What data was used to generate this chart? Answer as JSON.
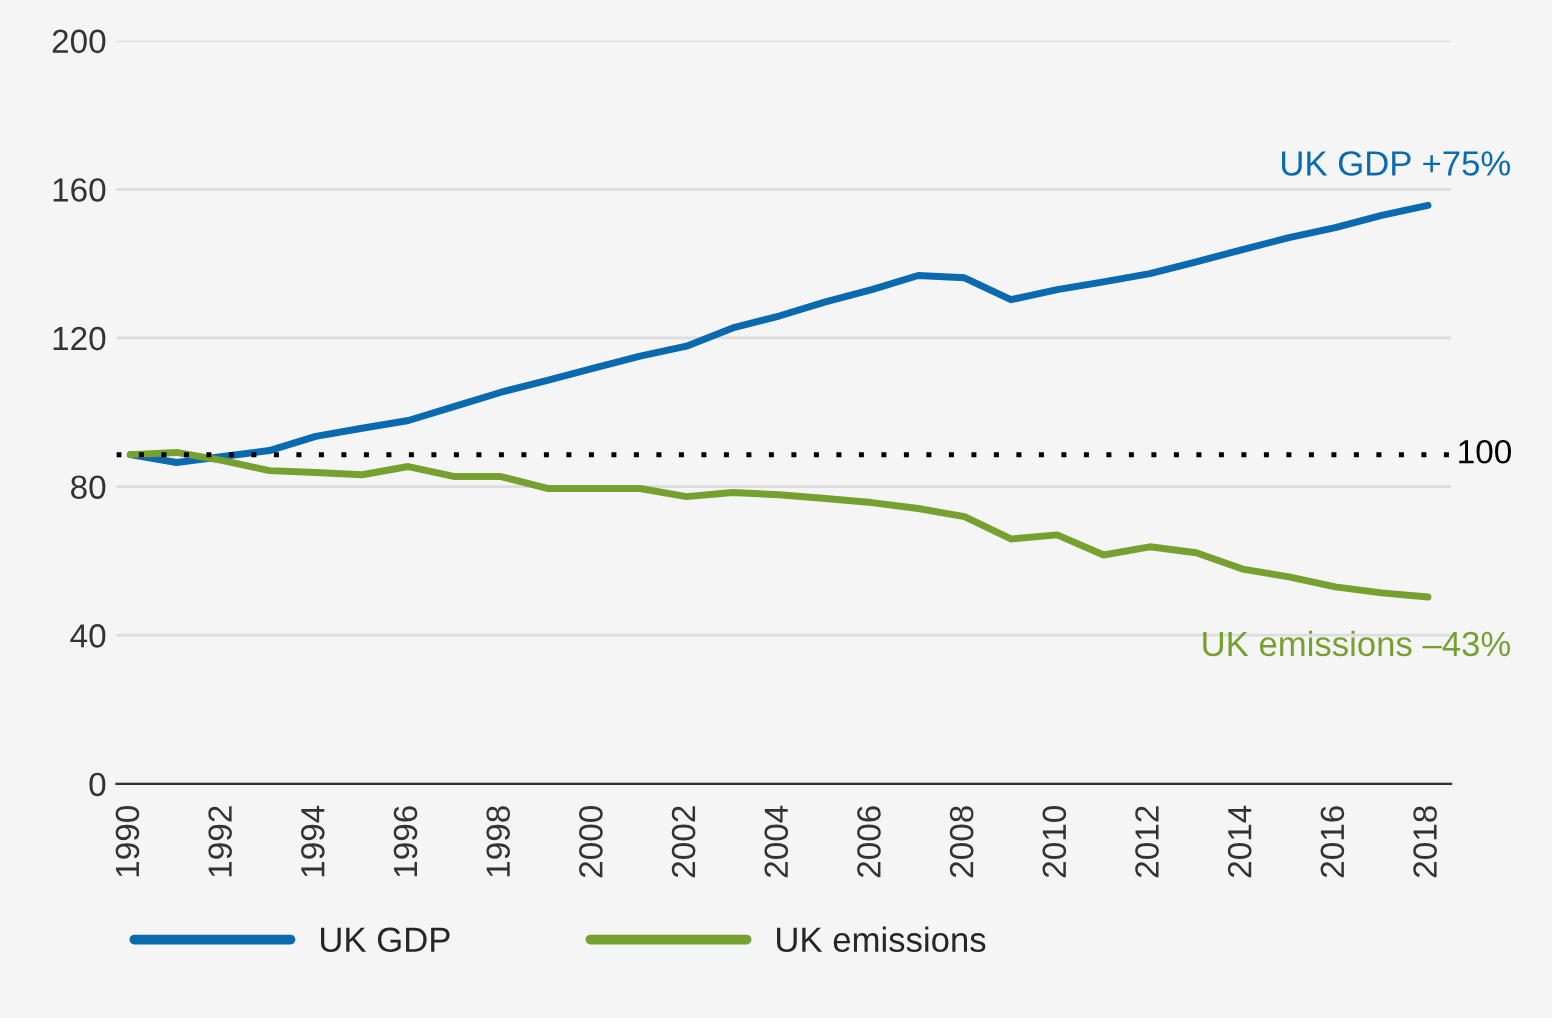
{
  "chart_data": {
    "type": "line",
    "x": [
      1990,
      1991,
      1992,
      1993,
      1994,
      1995,
      1996,
      1997,
      1998,
      1999,
      2000,
      2001,
      2002,
      2003,
      2004,
      2005,
      2006,
      2007,
      2008,
      2009,
      2010,
      2011,
      2012,
      2013,
      2014,
      2015,
      2016,
      2017,
      2018
    ],
    "series": [
      {
        "name": "UK GDP",
        "color": "#0a6ab0",
        "values": [
          88.6,
          86.5,
          88.1,
          89.7,
          93.5,
          95.7,
          97.8,
          101.6,
          105.4,
          108.6,
          111.9,
          115.1,
          117.8,
          122.7,
          125.9,
          129.7,
          133,
          136.8,
          136.2,
          130.3,
          133,
          135.1,
          137.3,
          140.5,
          143.8,
          147,
          149.7,
          153,
          155.7
        ]
      },
      {
        "name": "UK emissions",
        "color": "#76a030",
        "values": [
          88.6,
          89.2,
          87,
          84.3,
          83.8,
          83.2,
          85.4,
          82.7,
          82.7,
          79.5,
          79.5,
          79.5,
          77.3,
          78.4,
          77.8,
          76.8,
          75.7,
          74.1,
          71.9,
          65.9,
          67,
          61.6,
          63.8,
          62.2,
          57.8,
          55.7,
          53,
          51.4,
          50.3
        ]
      }
    ],
    "xlim": [
      1989.7,
      2018.5
    ],
    "xticks": [
      1990,
      1992,
      1994,
      1996,
      1998,
      2000,
      2002,
      2004,
      2006,
      2008,
      2010,
      2012,
      2014,
      2016,
      2018
    ],
    "ylim": [
      0,
      200
    ],
    "yticks": [
      0,
      40,
      80,
      120,
      160,
      200
    ],
    "grid": "y",
    "legend": "bottom",
    "marker": "none",
    "line_style": "solid",
    "ref_lines": [
      {
        "axis": "y",
        "value": 88.6,
        "color": "#000000",
        "line_style": "dotted"
      }
    ],
    "annotations": [
      "UK GDP +75%",
      "UK emissions –43%",
      "100"
    ]
  }
}
